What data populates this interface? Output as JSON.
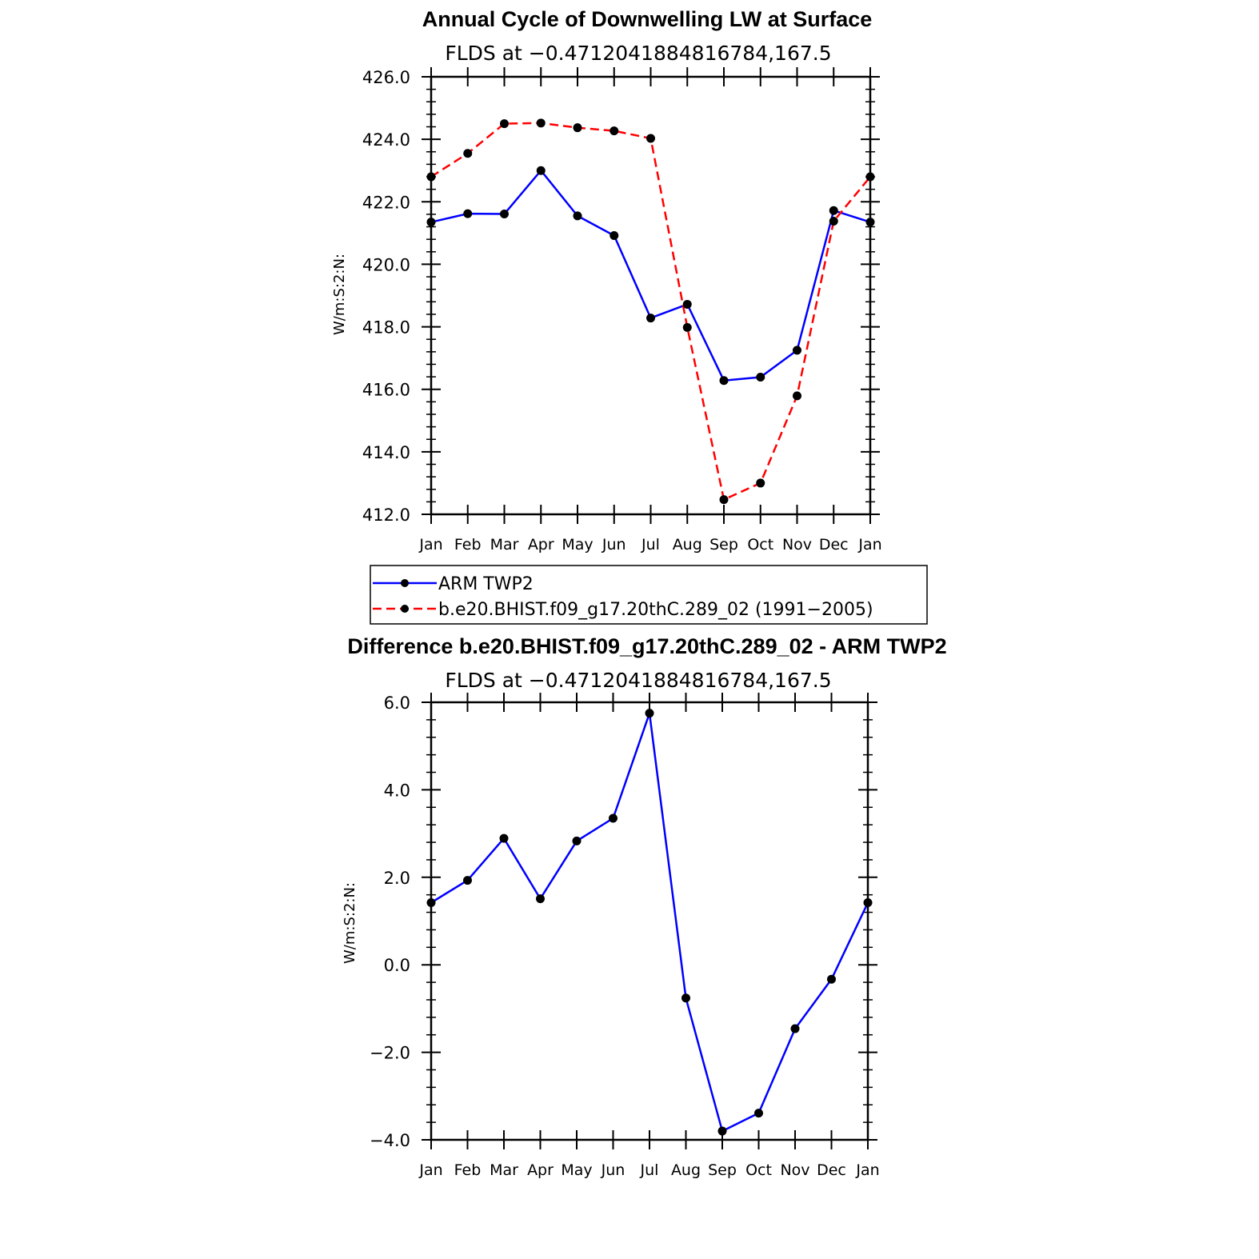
{
  "chart_data": [
    {
      "type": "line",
      "title": "Annual Cycle of Downwelling LW at Surface",
      "subtitle": "FLDS at −0.4712041884816784,167.5",
      "ylabel": "W/m:S:2:N:",
      "categories": [
        "Jan",
        "Feb",
        "Mar",
        "Apr",
        "May",
        "Jun",
        "Jul",
        "Aug",
        "Sep",
        "Oct",
        "Nov",
        "Dec",
        "Jan"
      ],
      "ylim": [
        412.0,
        426.0
      ],
      "yticks": [
        "412.0",
        "414.0",
        "416.0",
        "418.0",
        "420.0",
        "422.0",
        "424.0",
        "426.0"
      ],
      "series": [
        {
          "name": "ARM TWP2",
          "color": "#0000ff",
          "style": "solid",
          "values": [
            421.35,
            421.62,
            421.61,
            423.0,
            421.55,
            420.92,
            418.28,
            418.72,
            416.28,
            416.39,
            417.25,
            421.72,
            421.35
          ]
        },
        {
          "name": "b.e20.BHIST.f09_g17.20thC.289_02 (1991−2005)",
          "color": "#ff0000",
          "style": "dashed",
          "values": [
            422.8,
            423.55,
            424.5,
            424.52,
            424.37,
            424.27,
            424.03,
            417.98,
            412.47,
            413.0,
            415.79,
            421.38,
            422.8
          ]
        }
      ]
    },
    {
      "type": "line",
      "title": "Difference b.e20.BHIST.f09_g17.20thC.289_02 - ARM TWP2",
      "subtitle": "FLDS at −0.4712041884816784,167.5",
      "ylabel": "W/m:S:2:N:",
      "categories": [
        "Jan",
        "Feb",
        "Mar",
        "Apr",
        "May",
        "Jun",
        "Jul",
        "Aug",
        "Sep",
        "Oct",
        "Nov",
        "Dec",
        "Jan"
      ],
      "ylim": [
        -4.0,
        6.0
      ],
      "yticks": [
        "−4.0",
        "−2.0",
        "0.0",
        "2.0",
        "4.0",
        "6.0"
      ],
      "series": [
        {
          "color": "#0000ff",
          "style": "solid",
          "values": [
            1.42,
            1.93,
            2.89,
            1.51,
            2.83,
            3.35,
            5.75,
            -0.76,
            -3.8,
            -3.39,
            -1.46,
            -0.33,
            1.42
          ]
        }
      ]
    }
  ]
}
